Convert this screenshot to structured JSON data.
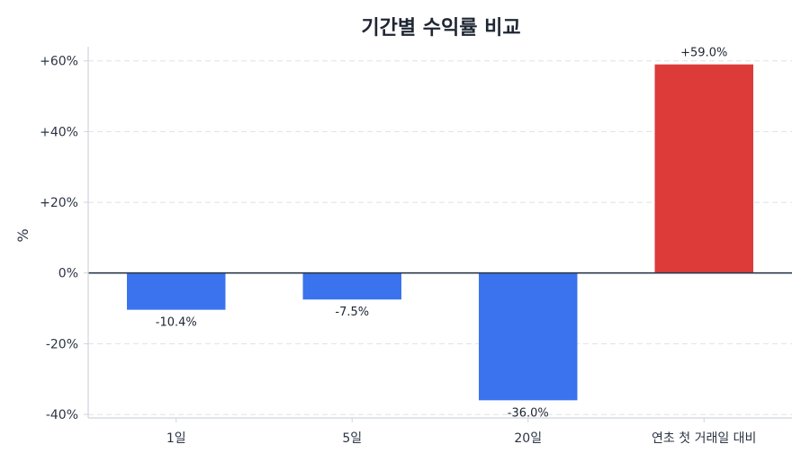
{
  "chart_data": {
    "type": "bar",
    "title": "기간별 수익률 비교",
    "ylabel": "%",
    "xlabel": "",
    "categories": [
      "1일",
      "5일",
      "20일",
      "연초 첫 거래일 대비"
    ],
    "values": [
      -10.4,
      -7.5,
      -36.0,
      59.0
    ],
    "data_labels": [
      "-10.4%",
      "-7.5%",
      "-36.0%",
      "+59.0%"
    ],
    "ylim": [
      -41,
      64
    ],
    "yticks": [
      -40,
      -20,
      0,
      20,
      40,
      60
    ],
    "ytick_labels": [
      "-40%",
      "-20%",
      "0%",
      "+20%",
      "+40%",
      "+60%"
    ],
    "grid": true,
    "colors": {
      "negative": "#3b73ee",
      "positive": "#dd3a3a",
      "zero_line": "#2e3a4d",
      "grid": "#dde1e8",
      "axis": "#cfd4dc"
    }
  }
}
